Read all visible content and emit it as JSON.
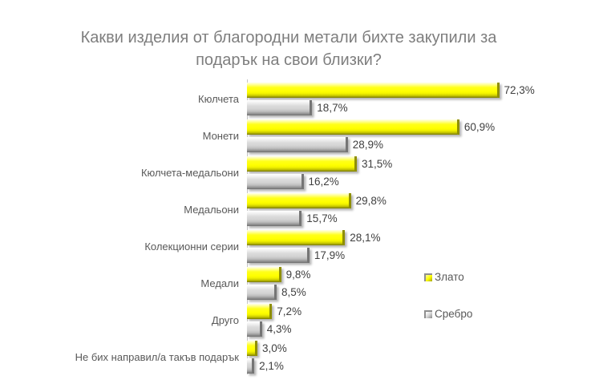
{
  "title": "Какви изделия от благородни метали бихте закупили за подарък на свои близки?",
  "legend": {
    "position": "right",
    "items": [
      {
        "label": "Злато",
        "swatch_color": "#FFFF00"
      },
      {
        "label": "Сребро",
        "swatch_color": "#C0C0C0"
      }
    ]
  },
  "chart_data": {
    "type": "bar",
    "orientation": "horizontal",
    "title": "Какви изделия от благородни метали бихте закупили за подарък на свои близки?",
    "xlabel": "",
    "ylabel": "",
    "xlim": [
      0,
      80
    ],
    "grid": false,
    "value_format": "percent with comma decimal separator",
    "categories": [
      "Кюлчета",
      "Монети",
      "Кюлчета-медальони",
      "Медальони",
      "Колекционни серии",
      "Медали",
      "Друго",
      "Не бих направил/а такъв подарък"
    ],
    "series": [
      {
        "name": "Злато",
        "color": "#FFFF00",
        "values": [
          72.3,
          60.9,
          31.5,
          29.8,
          28.1,
          9.8,
          7.2,
          3.0
        ],
        "labels": [
          "72,3%",
          "60,9%",
          "31,5%",
          "29,8%",
          "28,1%",
          "9,8%",
          "7,2%",
          "3,0%"
        ]
      },
      {
        "name": "Сребро",
        "color": "#C0C0C0",
        "values": [
          18.7,
          28.9,
          16.2,
          15.7,
          17.9,
          8.5,
          4.3,
          2.1
        ],
        "labels": [
          "18,7%",
          "28,9%",
          "16,2%",
          "15,7%",
          "17,9%",
          "8,5%",
          "4,3%",
          "2,1%"
        ]
      }
    ]
  }
}
